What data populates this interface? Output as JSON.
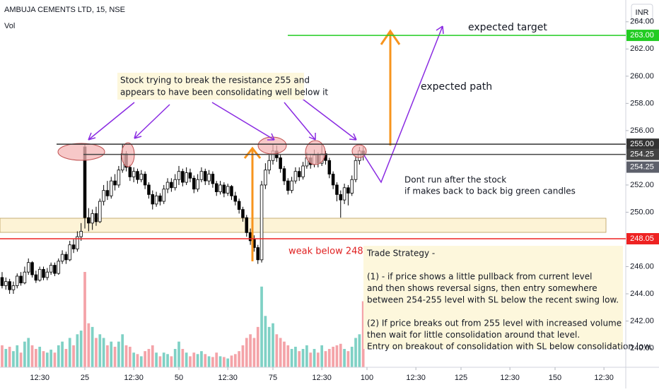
{
  "chart_data": {
    "type": "candlestick",
    "title": "AMBUJA CEMENTS LTD, 15, NSE",
    "volume_label": "Vol",
    "currency": "INR",
    "xlim": [
      2.44,
      168.8
    ],
    "xticks": [
      {
        "value": 13,
        "label": "12:30"
      },
      25,
      {
        "value": 38,
        "label": "12:30"
      },
      50,
      {
        "value": 63,
        "label": "12:30"
      },
      75,
      {
        "value": 88,
        "label": "12:30"
      },
      100,
      {
        "value": 113,
        "label": "12:30"
      },
      125,
      {
        "value": 138,
        "label": "12:30"
      },
      150,
      {
        "value": 163,
        "label": "12:30"
      }
    ],
    "xtick_labels_override": null,
    "ylim": [
      238.6,
      265.6
    ],
    "yticks": [
      {
        "value": 240,
        "label": "240.00"
      },
      {
        "value": 242,
        "label": "242.00"
      },
      {
        "value": 244,
        "label": "244.00"
      },
      {
        "value": 246,
        "label": "246.00"
      },
      {
        "value": 250,
        "label": "250.00"
      },
      {
        "value": 252,
        "label": "252.00"
      },
      {
        "value": 256,
        "label": "256.00"
      },
      {
        "value": 258,
        "label": "258.00"
      },
      {
        "value": 260,
        "label": "260.00"
      },
      {
        "value": 262,
        "label": "262.00"
      },
      {
        "value": 264,
        "label": "264.00"
      }
    ],
    "grid": false,
    "up_color": "#ffffff",
    "down_color": "#000000",
    "volume_up_color": "#7fd1c5",
    "volume_down_color": "#f4a3a8",
    "x": [
      3,
      4,
      5,
      6,
      7,
      8,
      9,
      10,
      11,
      12,
      13,
      14,
      15,
      16,
      17,
      18,
      19,
      20,
      21,
      22,
      23,
      24,
      25,
      26,
      27,
      28,
      29,
      30,
      31,
      32,
      33,
      34,
      35,
      36,
      37,
      38,
      39,
      40,
      41,
      42,
      43,
      44,
      45,
      46,
      47,
      48,
      49,
      50,
      51,
      52,
      53,
      54,
      55,
      56,
      57,
      58,
      59,
      60,
      61,
      62,
      63,
      64,
      65,
      66,
      67,
      68,
      69,
      70,
      71,
      72,
      73,
      74,
      75,
      76,
      77,
      78,
      79,
      80,
      81,
      82,
      83,
      84,
      85,
      86,
      87,
      88,
      89,
      90,
      91,
      92,
      93,
      94,
      95,
      96,
      97,
      98,
      99
    ],
    "open": [
      245.2,
      244.6,
      244.9,
      244.3,
      244.6,
      245.3,
      244.8,
      245.6,
      246.3,
      245.4,
      245.0,
      245.8,
      245.2,
      245.6,
      246.1,
      245.5,
      246.4,
      246.9,
      246.5,
      247.6,
      247.3,
      248.2,
      254.8,
      249.6,
      249.2,
      249.9,
      249.3,
      250.8,
      251.6,
      251.2,
      252.3,
      252.0,
      253.1,
      254.3,
      253.3,
      252.6,
      253.0,
      252.4,
      252.8,
      252.0,
      251.3,
      250.6,
      251.2,
      250.8,
      251.7,
      252.2,
      251.8,
      252.4,
      253.0,
      252.2,
      252.9,
      252.5,
      251.7,
      252.4,
      253.0,
      252.3,
      252.8,
      252.1,
      251.5,
      252.0,
      251.4,
      251.9,
      251.2,
      250.8,
      250.2,
      249.6,
      248.5,
      248.0,
      247.4,
      246.5,
      252.0,
      253.1,
      253.8,
      254.5,
      254.0,
      253.2,
      252.3,
      251.6,
      252.3,
      253.0,
      252.6,
      253.4,
      254.0,
      253.5,
      254.2,
      253.6,
      254.3,
      253.8,
      252.8,
      252.0,
      251.3,
      250.9,
      251.8,
      251.4,
      252.4,
      253.8,
      254.5
    ],
    "high": [
      245.6,
      245.2,
      245.1,
      244.9,
      245.5,
      245.6,
      246.0,
      246.6,
      246.4,
      245.7,
      246.0,
      246.0,
      245.9,
      246.3,
      246.3,
      246.6,
      247.2,
      247.1,
      247.9,
      248.0,
      248.6,
      249.2,
      255.0,
      250.3,
      250.2,
      250.4,
      251.0,
      252.0,
      252.3,
      252.6,
      252.8,
      253.4,
      255.0,
      254.5,
      253.5,
      253.3,
      253.2,
      253.1,
      253.0,
      252.2,
      251.6,
      251.5,
      251.4,
      252.0,
      252.5,
      252.5,
      252.8,
      253.4,
      253.2,
      253.3,
      253.2,
      252.7,
      252.8,
      253.3,
      253.2,
      253.1,
      253.0,
      252.3,
      252.3,
      252.2,
      252.1,
      252.0,
      251.5,
      251.0,
      250.4,
      249.8,
      248.8,
      248.3,
      247.6,
      252.3,
      253.6,
      254.2,
      255.0,
      254.9,
      254.2,
      253.4,
      252.5,
      252.6,
      253.3,
      253.3,
      253.7,
      254.4,
      254.2,
      254.6,
      254.4,
      255.0,
      254.5,
      254.0,
      253.0,
      252.2,
      251.6,
      252.1,
      252.0,
      252.7,
      254.1,
      254.8,
      254.8
    ],
    "low": [
      244.4,
      244.3,
      244.0,
      244.0,
      244.4,
      244.6,
      244.7,
      245.4,
      245.2,
      244.8,
      244.9,
      245.0,
      245.0,
      245.4,
      245.3,
      245.4,
      246.2,
      246.2,
      246.4,
      247.0,
      247.1,
      247.9,
      248.8,
      248.6,
      248.7,
      249.0,
      249.2,
      250.5,
      250.9,
      251.0,
      251.6,
      251.8,
      252.9,
      253.0,
      252.3,
      252.2,
      252.1,
      252.2,
      251.7,
      251.0,
      250.2,
      250.4,
      250.5,
      250.6,
      251.4,
      251.5,
      251.6,
      252.0,
      251.9,
      252.0,
      252.2,
      251.4,
      251.5,
      252.2,
      252.0,
      252.0,
      251.8,
      251.2,
      251.3,
      251.1,
      251.2,
      250.9,
      250.5,
      249.9,
      249.3,
      248.2,
      247.6,
      247.1,
      246.2,
      246.3,
      251.7,
      252.8,
      253.5,
      253.7,
      252.9,
      252.0,
      251.3,
      251.4,
      252.1,
      252.3,
      252.4,
      253.2,
      253.2,
      253.3,
      253.3,
      253.4,
      253.5,
      252.5,
      251.7,
      250.8,
      249.6,
      250.6,
      250.5,
      251.2,
      252.2,
      253.5,
      253.8
    ],
    "close": [
      244.6,
      244.9,
      244.3,
      244.6,
      245.3,
      244.8,
      245.6,
      246.3,
      245.4,
      245.0,
      245.8,
      245.2,
      245.6,
      246.1,
      245.5,
      246.4,
      246.9,
      246.5,
      247.6,
      247.3,
      248.2,
      248.6,
      249.6,
      249.2,
      249.9,
      249.3,
      250.8,
      251.6,
      251.2,
      252.3,
      252.0,
      253.1,
      254.3,
      253.3,
      252.6,
      253.0,
      252.4,
      252.8,
      252.0,
      251.3,
      250.6,
      251.2,
      250.8,
      251.7,
      252.2,
      251.8,
      252.4,
      253.0,
      252.2,
      252.9,
      252.5,
      251.7,
      252.4,
      253.0,
      252.3,
      252.8,
      252.1,
      251.5,
      252.0,
      251.4,
      251.9,
      251.2,
      250.8,
      250.2,
      249.6,
      248.5,
      247.9,
      247.4,
      246.5,
      252.0,
      253.1,
      253.8,
      254.5,
      254.0,
      253.2,
      252.3,
      251.6,
      252.3,
      253.0,
      252.6,
      253.4,
      254.0,
      253.5,
      254.2,
      253.6,
      254.3,
      253.8,
      252.8,
      252.0,
      251.3,
      250.9,
      251.8,
      251.4,
      252.4,
      253.8,
      254.5,
      254.25
    ],
    "volume": [
      30,
      25,
      28,
      22,
      30,
      20,
      35,
      40,
      30,
      25,
      28,
      22,
      20,
      24,
      20,
      30,
      35,
      25,
      40,
      30,
      45,
      50,
      130,
      60,
      55,
      40,
      45,
      40,
      30,
      35,
      28,
      35,
      45,
      30,
      28,
      20,
      18,
      15,
      22,
      25,
      30,
      20,
      15,
      20,
      18,
      15,
      25,
      35,
      25,
      20,
      15,
      20,
      18,
      22,
      18,
      15,
      14,
      20,
      15,
      14,
      12,
      16,
      18,
      22,
      30,
      40,
      45,
      40,
      55,
      110,
      70,
      55,
      60,
      45,
      40,
      35,
      30,
      25,
      28,
      22,
      25,
      30,
      20,
      25,
      20,
      30,
      22,
      25,
      28,
      30,
      32,
      25,
      22,
      28,
      40,
      45,
      90
    ],
    "price_lines": [
      {
        "value": 263,
        "label": "263.00",
        "color": "#22cc22"
      },
      {
        "value": 255,
        "label": "255.00",
        "color": "#333333"
      },
      {
        "value": 254.25,
        "label": "254.25",
        "color": "#444444"
      },
      {
        "value": 248.05,
        "label": "248.05",
        "color": "#ee2222"
      }
    ],
    "last_price": {
      "value": 254.25,
      "label": "254.25"
    },
    "annotations": {
      "target": "expected target",
      "path": "expected path",
      "resistance": [
        "Stock trying to break the resistance 255 and",
        "appears to have been consolidating  well below it"
      ],
      "caution": [
        "Dont run after the stock",
        "if makes back to back big green candles"
      ],
      "weak": "weak below 248",
      "strategy": [
        "Trade Strategy -",
        "",
        "(1) - if price shows a little pullback from current level",
        "and then shows reversal signs, then entry somewhere",
        "between 254-255 level with SL below the recent swing low.",
        "",
        "(2) If price breaks out from 255 level with increased volume",
        "then wait for little consolidation around that level.",
        "Entry on breakout of consolidation with SL below consolidation low."
      ]
    }
  }
}
